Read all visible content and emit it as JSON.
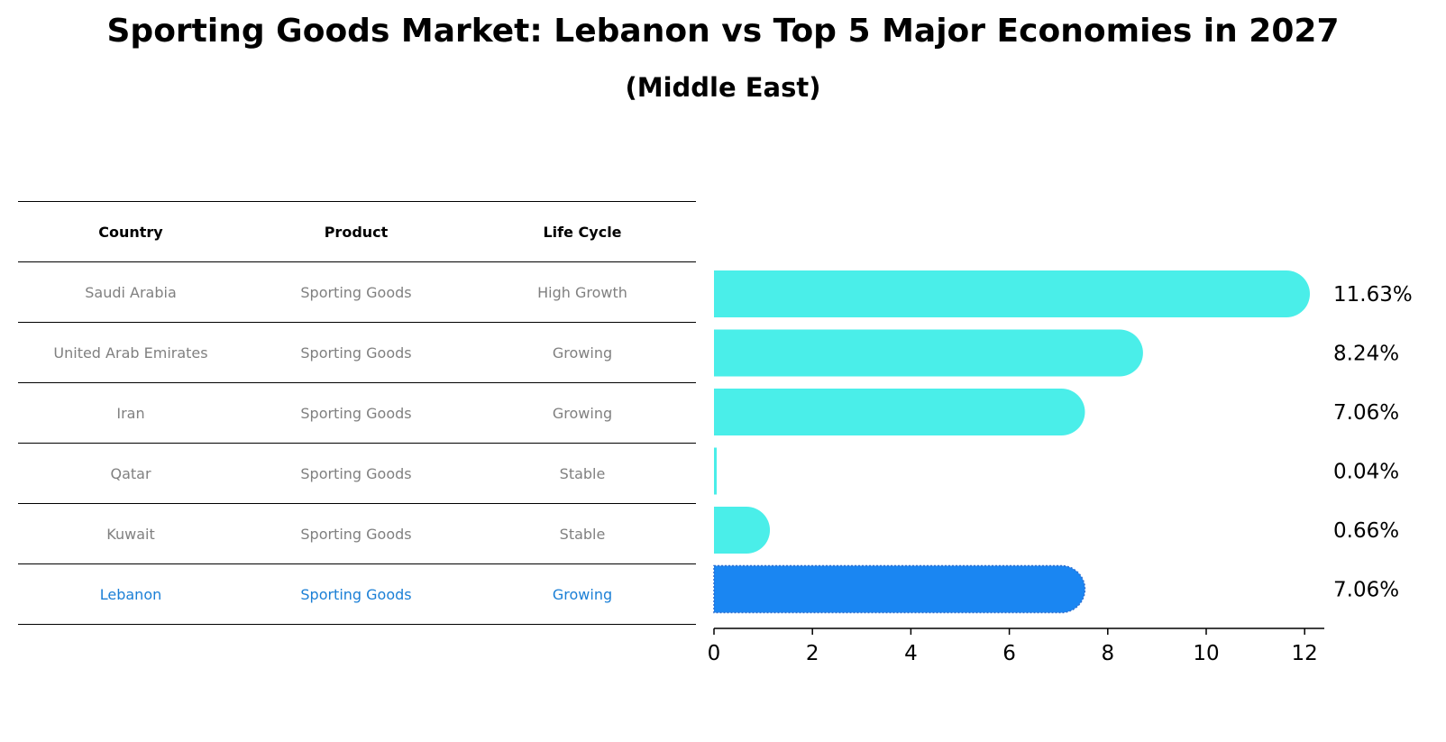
{
  "chart_data": {
    "type": "bar",
    "orientation": "horizontal",
    "title": "Sporting Goods Market: Lebanon vs Top 5 Major Economies in 2027",
    "subtitle": "(Middle East)",
    "categories": [
      "Saudi Arabia",
      "United Arab Emirates",
      "Iran",
      "Qatar",
      "Kuwait",
      "Lebanon"
    ],
    "values": [
      11.63,
      8.24,
      7.06,
      0.04,
      0.66,
      7.06
    ],
    "value_labels": [
      "11.63%",
      "8.24%",
      "7.06%",
      "0.04%",
      "0.66%",
      "7.06%"
    ],
    "highlight": "Lebanon",
    "xlim": [
      0,
      12.2
    ],
    "xticks": [
      0,
      2,
      4,
      6,
      8,
      10,
      12
    ],
    "xlabel": "",
    "ylabel": "",
    "colors": {
      "bar": "#4aeee9",
      "highlight": "#1a86f2",
      "highlight_text": "#1a7fd6",
      "muted_text": "#808080"
    }
  },
  "table": {
    "headers": [
      "Country",
      "Product",
      "Life Cycle"
    ],
    "rows": [
      [
        "Saudi Arabia",
        "Sporting Goods",
        "High Growth"
      ],
      [
        "United Arab Emirates",
        "Sporting Goods",
        "Growing"
      ],
      [
        "Iran",
        "Sporting Goods",
        "Growing"
      ],
      [
        "Qatar",
        "Sporting Goods",
        "Stable"
      ],
      [
        "Kuwait",
        "Sporting Goods",
        "Stable"
      ],
      [
        "Lebanon",
        "Sporting Goods",
        "Growing"
      ]
    ]
  }
}
